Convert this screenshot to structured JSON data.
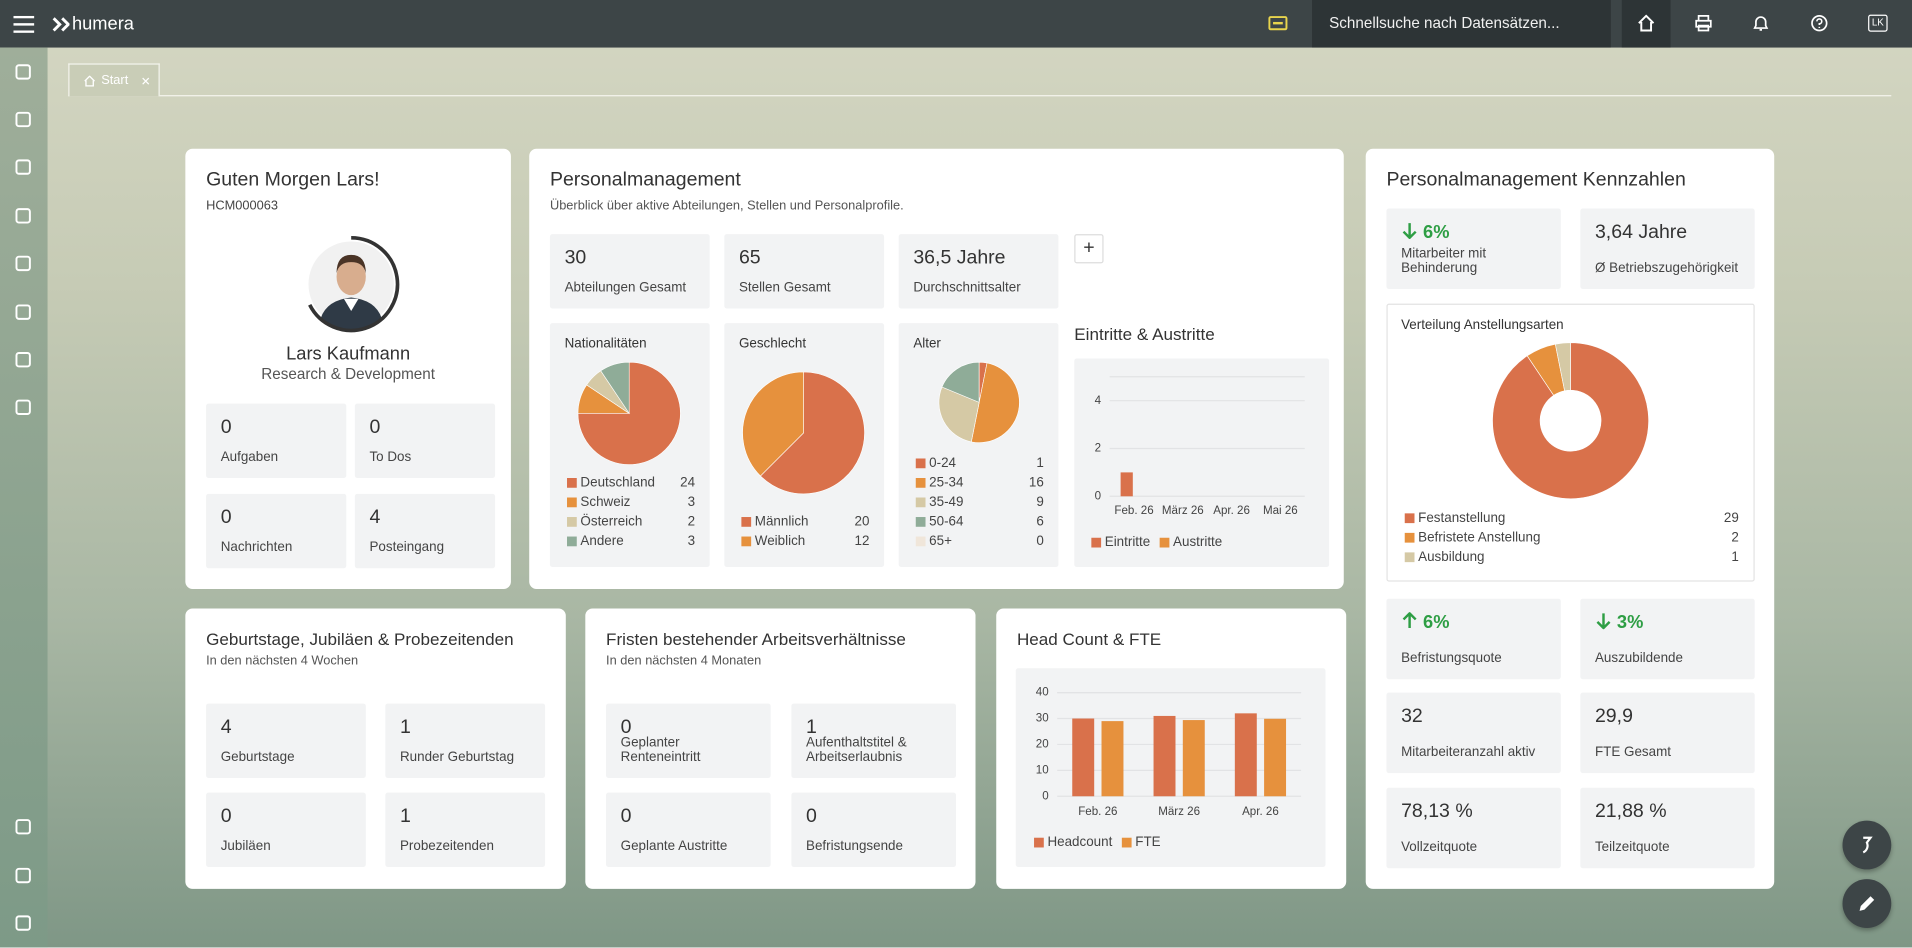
{
  "topbar": {
    "brand": "humera",
    "search": "Schnellsuche nach Datensätzen...",
    "user": "LK"
  },
  "tab": "Start",
  "greeting": {
    "title": "Guten Morgen Lars!",
    "id": "HCM000063",
    "name": "Lars Kaufmann",
    "department": "Research & Development",
    "tiles": [
      {
        "value": 0,
        "label": "Aufgaben"
      },
      {
        "value": 0,
        "label": "To Dos"
      },
      {
        "value": 0,
        "label": "Nachrichten"
      },
      {
        "value": 4,
        "label": "Posteingang"
      }
    ]
  },
  "personal": {
    "title": "Personalmanagement",
    "subtitle": "Überblick über aktive Abteilungen, Stellen und Personalprofile.",
    "tiles": [
      {
        "value": 30,
        "label": "Abteilungen Gesamt"
      },
      {
        "value": 65,
        "label": "Stellen Gesamt"
      },
      {
        "value": "36,5 Jahre",
        "label": "Durchschnittsalter"
      }
    ],
    "add": "+",
    "nationalities": {
      "type": "pie",
      "title": "Nationalitäten",
      "categories": [
        "Deutschland",
        "Schweiz",
        "Österreich",
        "Andere"
      ],
      "values": [
        24,
        3,
        2,
        3
      ],
      "colors": [
        "#d9714b",
        "#e6913d",
        "#d5c9a5",
        "#8fac98"
      ]
    },
    "gender": {
      "type": "pie",
      "title": "Geschlecht",
      "categories": [
        "Männlich",
        "Weiblich"
      ],
      "values": [
        20,
        12
      ],
      "colors": [
        "#d9714b",
        "#e6913d"
      ]
    },
    "age": {
      "type": "pie",
      "title": "Alter",
      "categories": [
        "0-24",
        "25-34",
        "35-49",
        "50-64",
        "65+"
      ],
      "values": [
        1,
        16,
        9,
        6,
        0
      ],
      "colors": [
        "#d9714b",
        "#e6913d",
        "#d5c9a5",
        "#8fac98",
        "#f0e6da"
      ]
    },
    "flows": {
      "type": "bar",
      "title": "Eintritte & Austritte",
      "categories": [
        "Feb. 26",
        "März 26",
        "Apr. 26",
        "Mai 26"
      ],
      "series": [
        {
          "name": "Eintritte",
          "color": "#d9714b",
          "values": [
            1,
            0,
            0,
            0
          ]
        },
        {
          "name": "Austritte",
          "color": "#e6913d",
          "values": [
            0,
            0,
            0,
            0
          ]
        }
      ],
      "ylim": [
        0,
        5
      ],
      "yticks": [
        0,
        2,
        4
      ],
      "grid": true
    }
  },
  "birthdays": {
    "title": "Geburtstage, Jubiläen & Probezeitenden",
    "subtitle": "In den nächsten 4 Wochen",
    "tiles": [
      {
        "value": 4,
        "label": "Geburtstage"
      },
      {
        "value": 1,
        "label": "Runder Geburtstag"
      },
      {
        "value": 0,
        "label": "Jubiläen"
      },
      {
        "value": 1,
        "label": "Probezeitenden"
      }
    ]
  },
  "contracts": {
    "title": "Fristen bestehender Arbeitsverhältnisse",
    "subtitle": "In den nächsten 4 Monaten",
    "tiles": [
      {
        "value": 0,
        "label": "Geplanter Renteneintritt"
      },
      {
        "value": 1,
        "label": "Aufenthaltstitel & Arbeitserlaubnis"
      },
      {
        "value": 0,
        "label": "Geplante Austritte"
      },
      {
        "value": 0,
        "label": "Befristungsende"
      }
    ]
  },
  "headcount": {
    "type": "bar",
    "title": "Head Count & FTE",
    "categories": [
      "Feb. 26",
      "März 26",
      "Apr. 26"
    ],
    "series": [
      {
        "name": "Headcount",
        "color": "#d9714b",
        "values": [
          30,
          31,
          32
        ]
      },
      {
        "name": "FTE",
        "color": "#e6913d",
        "values": [
          29,
          29.4,
          29.9
        ]
      }
    ],
    "ylim": [
      0,
      40
    ],
    "yticks": [
      0,
      10,
      20,
      30,
      40
    ],
    "grid": true
  },
  "kpis": {
    "title": "Personalmanagement Kennzahlen",
    "tiles": [
      {
        "value": "6%",
        "label": "Mitarbeiter mit Behinderung",
        "trend": "down"
      },
      {
        "value": "3,64 Jahre",
        "label": "Ø Betriebszugehörigkeit"
      },
      {
        "value": "6%",
        "label": "Befristungsquote",
        "trend": "up"
      },
      {
        "value": "3%",
        "label": "Auszubildende",
        "trend": "down"
      },
      {
        "value": 32,
        "label": "Mitarbeiteranzahl aktiv"
      },
      {
        "value": "29,9",
        "label": "FTE Gesamt"
      },
      {
        "value": "78,13 %",
        "label": "Vollzeitquote"
      },
      {
        "value": "21,88 %",
        "label": "Teilzeitquote"
      }
    ],
    "distribution": {
      "type": "pie",
      "donut": true,
      "title": "Verteilung Anstellungsarten",
      "categories": [
        "Festanstellung",
        "Befristete Anstellung",
        "Ausbildung"
      ],
      "values": [
        29,
        2,
        1
      ],
      "colors": [
        "#d9714b",
        "#e6913d",
        "#d5c9a5"
      ]
    }
  }
}
